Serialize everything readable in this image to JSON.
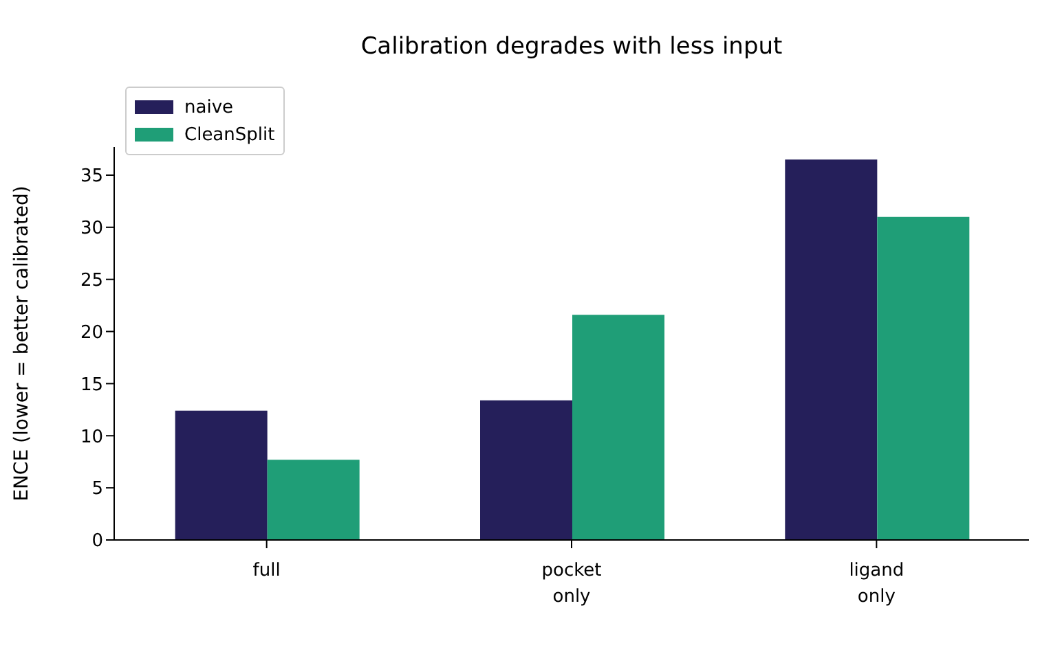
{
  "chart_data": {
    "type": "bar",
    "title": "Calibration degrades with less input",
    "ylabel": "ENCE (lower = better calibrated)",
    "categories": [
      "full",
      "pocket\nonly",
      "ligand\nonly"
    ],
    "series": [
      {
        "name": "naive",
        "color": "#251f5a",
        "values": [
          12.4,
          13.4,
          36.5
        ]
      },
      {
        "name": "CleanSplit",
        "color": "#1f9e77",
        "values": [
          7.7,
          21.6,
          31.0
        ]
      }
    ],
    "ylim": [
      0,
      37.7
    ],
    "yticks": [
      0,
      5,
      10,
      15,
      20,
      25,
      30,
      35
    ],
    "grid": false,
    "legend": "top left"
  }
}
